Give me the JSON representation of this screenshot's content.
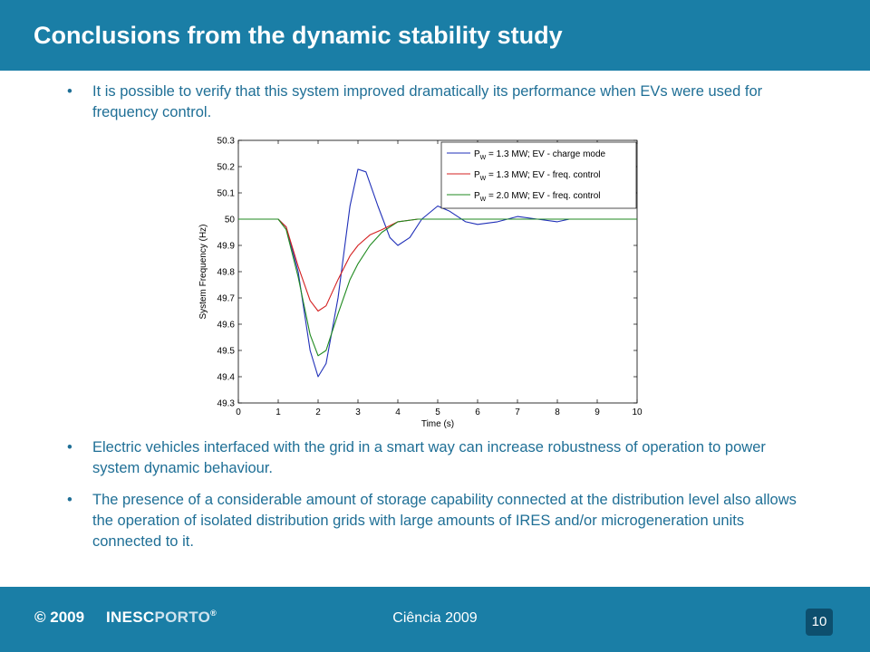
{
  "header": {
    "title": "Conclusions from the dynamic stability study"
  },
  "bullets": [
    "It is possible to verify that this system improved dramatically its performance when EVs were used for frequency control.",
    "Electric vehicles interfaced with the grid in a smart way can increase robustness of operation to power system dynamic behaviour.",
    "The presence of a considerable amount of storage capability connected at the distribution level also allows the operation of isolated distribution grids with large amounts of IRES and/or microgeneration units connected to it."
  ],
  "bullet_symbol": "•",
  "footer": {
    "copyright": "© 2009",
    "brand_a": "INESC",
    "brand_b": "PORTO",
    "brand_reg": "®",
    "center": "Ciência 2009",
    "page": "10"
  },
  "colors": {
    "band": "#1a7ea6",
    "text": "#1f6f96"
  },
  "chart_data": {
    "type": "line",
    "title": "",
    "xlabel": "Time (s)",
    "ylabel": "System Frequency (Hz)",
    "xlim": [
      0,
      10
    ],
    "ylim": [
      49.3,
      50.3
    ],
    "xticks": [
      "0",
      "1",
      "2",
      "3",
      "4",
      "5",
      "6",
      "7",
      "8",
      "9",
      "10"
    ],
    "yticks": [
      "49.3",
      "49.4",
      "49.5",
      "49.6",
      "49.7",
      "49.8",
      "49.9",
      "50",
      "50.1",
      "50.2",
      "50.3"
    ],
    "legend_position": "top-right",
    "series": [
      {
        "legend": {
          "p": "P",
          "sub": "W",
          "rest": " = 1.3 MW; EV - charge mode"
        },
        "color": "#1f2fb8",
        "x": [
          0,
          1,
          1.2,
          1.5,
          1.8,
          2.0,
          2.2,
          2.5,
          2.8,
          3.0,
          3.2,
          3.5,
          3.8,
          4.0,
          4.3,
          4.6,
          5.0,
          5.3,
          5.7,
          6.0,
          6.5,
          7.0,
          7.5,
          8.0,
          8.3
        ],
        "y": [
          50,
          50,
          49.97,
          49.8,
          49.5,
          49.4,
          49.45,
          49.7,
          50.05,
          50.19,
          50.18,
          50.05,
          49.93,
          49.9,
          49.93,
          50.0,
          50.05,
          50.03,
          49.99,
          49.98,
          49.99,
          50.01,
          50.0,
          49.99,
          50.0
        ]
      },
      {
        "legend": {
          "p": "P",
          "sub": "W",
          "rest": " = 1.3 MW; EV - freq. control"
        },
        "color": "#d42020",
        "x": [
          0,
          1,
          1.2,
          1.5,
          1.8,
          2.0,
          2.2,
          2.5,
          2.8,
          3.0,
          3.3,
          3.6,
          4.0,
          4.5,
          5.0,
          5.5,
          6.0,
          7.0,
          8.0,
          10.0
        ],
        "y": [
          50,
          50,
          49.97,
          49.82,
          49.69,
          49.65,
          49.67,
          49.77,
          49.86,
          49.9,
          49.94,
          49.96,
          49.99,
          50.0,
          50.0,
          50.0,
          50.0,
          50.0,
          50.0,
          50.0
        ]
      },
      {
        "legend": {
          "p": "P",
          "sub": "W",
          "rest": " = 2.0 MW; EV - freq. control"
        },
        "color": "#1f8a1f",
        "x": [
          0,
          1,
          1.2,
          1.5,
          1.8,
          2.0,
          2.2,
          2.5,
          2.8,
          3.0,
          3.3,
          3.6,
          4.0,
          4.5,
          5.0,
          5.5,
          6.0,
          7.0,
          8.0,
          10.0
        ],
        "y": [
          50,
          50,
          49.96,
          49.78,
          49.56,
          49.48,
          49.5,
          49.64,
          49.77,
          49.83,
          49.9,
          49.95,
          49.99,
          50.0,
          50.0,
          50.0,
          50.0,
          50.0,
          50.0,
          50.0
        ]
      }
    ]
  }
}
